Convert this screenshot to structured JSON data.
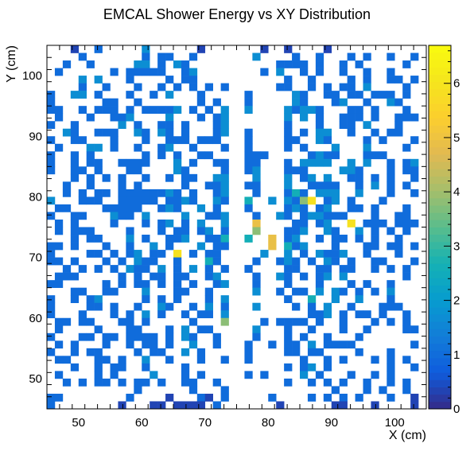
{
  "chart_data": {
    "type": "heatmap",
    "title": "EMCAL Shower Energy vs XY Distribution",
    "xlabel": "X (cm)",
    "ylabel": "Y (cm)",
    "xlim": [
      45,
      105
    ],
    "ylim": [
      45,
      105
    ],
    "bin_width": 1.25,
    "x_ticks": [
      50,
      60,
      70,
      80,
      90,
      100
    ],
    "y_ticks": [
      50,
      60,
      70,
      80,
      90,
      100
    ],
    "z_range": [
      0,
      6.7
    ],
    "z_ticks": [
      0,
      1,
      2,
      3,
      4,
      5,
      6
    ],
    "colormap": "parula",
    "grid": false,
    "legend": "colorbar-right",
    "gap_x_range": [
      73.75,
      76.25
    ],
    "rows": [
      "...0..1.....2......0.......0..0....0...........",
      "....1.......1.11..1.......2....1..1...1.1..1..1",
      "..1..1.....22.1.21......1....1111.1..1.1.....1.",
      ".1......1.11111..12........1.2..1.1..1..1..1...",
      "....2.2...1....1.11...........1..1....1.1..11.1",
      "....1..1...1..1.1.1.1.11.....11..1.1.11.2....1.",
      "1..22.1...1..1.2...1.....1.....21..11.11.111.1.",
      "1......11..1.......1.1.111.....21...12..1..21..",
      "11..1.111.1.11112.1.1.2112....21221...11.1...1.",
      ".1...1..112....2...1.121......2.2.1..111.1..111",
      "1..1.....2.1..11.1...1211.....1...1..11.2...1..",
      "..21..111..21.21.1...12.11....1.1.22..1..1.11..",
      "1..11...1...1..111.111...1....11..21....1.1...1",
      ".1...22.1..1..12..1...1..1....1.1...2...2....1.",
      "1..1.1......1.1.1..11...2111.....1211...111....",
      "1..1.11..1111...2.1..11..11...1.2222..2.2..1.12",
      "1..11.1...11....21....12.12...111....221...1.11",
      "...1.1.1.1..1..1.11..221..2...2.12.2..11.1.1..1",
      "..1..1...1.1.....1..112..11...2..1111..1.2.1.1.",
      "..1.1.11.11111121.1..1212.1...131.222..2...1..1",
      "2...111..11111.1121..21233..2.2146.12.1...1....",
      ".11....11111..121..2.1.211....121.12..11.1...1.",
      "1..11...211.2....2..11213.1..21.122111...1..11.",
      ".1.1....1...1.12.1.2..214.5....11.12..6.111.111",
      ".1.111....1...1.11.12.112.4...112..21..2.1.1.1.",
      "...1.11...2.1..112..1132.3..5.12..1.11.1.1..1..",
      "11.1...1..1..2.1...2.1112...5.312...1...11.11.1",
      "1....11.1.12.11.6.1.11.1...2..2.1.2112..1...1..",
      "11.1...1.1.211..1...31.12.1..121.1.21.1..11...1",
      "..1.1.1.1.211.2.1.2.1.11.1....11..11.11..1.1.1.",
      ".111.....1.1.11.11..12....1..21.1.12.2.......1.",
      "11.....1.1.11.1.1.1..1222.1...1...1...1.1..1...",
      "...11..11...2...11..1...1.2..1.11.2.21.1.1.2...",
      "1..1.12.....1.1.1...1.2.1.....1..3..2..2...1...",
      "1....11.1..1..21..1.2.1.1.2....1.1.2..1...111..",
      "1...1...1.1.2.1..1.11.21.........112.1.11.1..1.",
      ".11.11...11.1.....1...4.1..1.1111.1..1...1.1.1.",
      ".1....1...11...1.2.11..11.2...1..1...1..1....11",
      "1...11.11.1111.1.21..1..2.1...1.1..1...1.......",
      ".1.1...1..1.11.1..2..1.1.1..1.11.2.1111.......1",
      "1..1.11....1.11..2.1...211....11.11....1...1...",
      ".11...11.1..2..1...1..11.1......1..1.1...1.1.1.",
      "...1..1.11..1....1.....1......1.12.1.......1..1",
      ".1....1.1....2...1.1.....1.1....2.1...1..1.1...",
      "..1.1.11.1.11.1..11..1.1......1..1.1.1..1..1.1.",
      "...........1......1...1.............1...1.1..1.",
      "11........1....0...10.1.....1....1.1.1.1...1..0",
      "1........0...00.0000.1.0.....0......00...0....0"
    ]
  }
}
